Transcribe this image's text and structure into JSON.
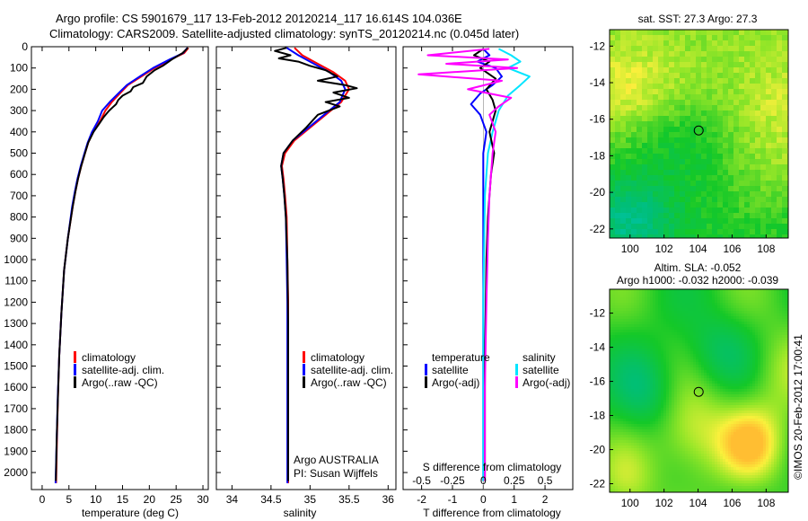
{
  "header": {
    "line1": "Argo profile: CS 5901679_117 13-Feb-2012 20120214_117 16.614S 104.036E",
    "line2": "Climatology: CARS2009. Satellite-adjusted climatology: synTS_20120214.nc (0.045d later)"
  },
  "colors": {
    "climatology": "#ff0000",
    "satellite": "#0000ff",
    "argo": "#000000",
    "sat_salinity": "#00e5ff",
    "argo_salinity": "#ff00ff"
  },
  "watermark": "©IMOS 20-Feb-2012 17:00:41",
  "chart_data": [
    {
      "type": "line",
      "name": "temperature-profile",
      "xlabel": "temperature (deg C)",
      "ylabel": "",
      "xlim": [
        -2,
        31
      ],
      "ylim": [
        0,
        2080
      ],
      "y_inverted": true,
      "xticks": [
        0,
        5,
        10,
        15,
        20,
        25,
        30
      ],
      "yticks": [
        0,
        100,
        200,
        300,
        400,
        500,
        600,
        700,
        800,
        900,
        1000,
        1100,
        1200,
        1300,
        1400,
        1500,
        1600,
        1700,
        1800,
        1900,
        2000
      ],
      "legend": [
        "climatology",
        "satellite-adj. clim.",
        "Argo(..raw -QC)"
      ],
      "series": [
        {
          "name": "climatology",
          "color": "#ff0000",
          "x": [
            27.3,
            26.5,
            24,
            21,
            18.5,
            16,
            14.5,
            13,
            11.8,
            10.8,
            9.5,
            8.6,
            8,
            7.3,
            6.7,
            6.2,
            5.7,
            4.8,
            4.1,
            3.6,
            3.2,
            2.95,
            2.75,
            2.6
          ],
          "y": [
            5,
            30,
            60,
            100,
            140,
            180,
            220,
            260,
            300,
            350,
            400,
            450,
            500,
            560,
            620,
            680,
            750,
            900,
            1050,
            1250,
            1450,
            1650,
            1850,
            2050
          ]
        },
        {
          "name": "satellite-adj. clim.",
          "color": "#0000ff",
          "x": [
            27.1,
            26.3,
            23.8,
            20.7,
            18.2,
            15.8,
            14.2,
            12.6,
            11.2,
            10.4,
            9.3,
            8.5,
            7.9,
            7.2,
            6.6,
            6.1,
            5.6,
            4.8,
            4.1,
            3.6,
            3.2,
            2.9,
            2.7,
            2.5
          ],
          "y": [
            5,
            30,
            60,
            100,
            140,
            180,
            220,
            260,
            300,
            350,
            400,
            450,
            500,
            560,
            620,
            680,
            750,
            900,
            1050,
            1250,
            1450,
            1650,
            1850,
            2050
          ]
        },
        {
          "name": "Argo",
          "color": "#000000",
          "x": [
            27.2,
            26.2,
            24.2,
            22.5,
            21,
            19.5,
            18.8,
            17,
            16.5,
            15,
            14.2,
            13.8,
            12.5,
            11.5,
            10.7,
            9.6,
            8.6,
            8,
            7.3,
            6.7,
            6.2,
            5.7,
            4.8,
            4.1,
            3.6,
            3.2,
            2.95,
            2.7,
            2.55
          ],
          "y": [
            5,
            30,
            60,
            90,
            110,
            140,
            170,
            190,
            210,
            230,
            250,
            270,
            300,
            330,
            360,
            400,
            450,
            500,
            560,
            620,
            680,
            750,
            900,
            1050,
            1250,
            1450,
            1650,
            1850,
            2040
          ]
        }
      ]
    },
    {
      "type": "line",
      "name": "salinity-profile",
      "xlabel": "salinity",
      "xlim": [
        33.8,
        36.1
      ],
      "ylim": [
        0,
        2080
      ],
      "y_inverted": true,
      "xticks": [
        34,
        34.5,
        35,
        35.5,
        36
      ],
      "legend": [
        "climatology",
        "satellite-adj. clim.",
        "Argo(..raw -QC)"
      ],
      "annotation": [
        "Argo AUSTRALIA",
        "PI: Susan Wijffels"
      ],
      "series": [
        {
          "name": "climatology",
          "color": "#ff0000",
          "x": [
            34.8,
            34.9,
            35.1,
            35.3,
            35.45,
            35.5,
            35.4,
            35.2,
            35,
            34.8,
            34.68,
            34.64,
            34.66,
            34.68,
            34.7,
            34.71,
            34.72,
            34.72,
            34.72,
            34.72
          ],
          "y": [
            5,
            40,
            80,
            120,
            160,
            200,
            260,
            320,
            380,
            440,
            500,
            560,
            620,
            700,
            800,
            1000,
            1200,
            1500,
            1800,
            2050
          ]
        },
        {
          "name": "satellite-adj. clim.",
          "color": "#0000ff",
          "x": [
            34.7,
            34.85,
            35.05,
            35.25,
            35.4,
            35.45,
            35.38,
            35.18,
            34.98,
            34.78,
            34.66,
            34.63,
            34.65,
            34.67,
            34.69,
            34.7,
            34.71,
            34.71,
            34.71,
            34.71
          ],
          "y": [
            5,
            40,
            80,
            120,
            160,
            200,
            260,
            320,
            380,
            440,
            500,
            560,
            620,
            700,
            800,
            1000,
            1200,
            1500,
            1800,
            2050
          ]
        },
        {
          "name": "Argo",
          "color": "#000000",
          "x": [
            34.7,
            34.55,
            34.75,
            34.6,
            34.85,
            35,
            35.2,
            35.35,
            35.1,
            35.45,
            35.6,
            35.3,
            35.5,
            35.2,
            35.38,
            35.1,
            34.95,
            34.78,
            34.66,
            34.63,
            34.65,
            34.67,
            34.69,
            34.71,
            34.72,
            34.72,
            34.72
          ],
          "y": [
            5,
            20,
            40,
            55,
            70,
            90,
            110,
            140,
            160,
            180,
            195,
            215,
            240,
            260,
            280,
            320,
            380,
            440,
            500,
            560,
            620,
            700,
            800,
            1000,
            1300,
            1700,
            2040
          ]
        }
      ]
    },
    {
      "type": "line",
      "name": "difference-from-climatology",
      "xlabel": "T difference from climatology",
      "xlabel_top": "S difference from climatology",
      "xlim": [
        -2.6,
        2.9
      ],
      "ylim": [
        0,
        2080
      ],
      "y_inverted": true,
      "xticks": [
        -2,
        -1,
        0,
        1,
        2
      ],
      "xticks_top_labels": [
        "-0.5",
        "-0.25",
        "0",
        "0.25",
        "0.5"
      ],
      "legend": [
        "temperature",
        "satellite",
        "Argo(-adj)",
        "salinity",
        "satellite",
        "Argo(-adj)"
      ],
      "series": [
        {
          "name": "temperature satellite",
          "color": "#0000ff",
          "x": [
            0,
            0.2,
            -0.2,
            0.4,
            0.6,
            0.3,
            -0.1,
            -0.4,
            -0.1,
            0.1,
            0,
            0,
            0,
            0
          ],
          "y": [
            10,
            40,
            70,
            100,
            140,
            180,
            220,
            270,
            320,
            400,
            500,
            700,
            1200,
            2040
          ]
        },
        {
          "name": "salinity satellite",
          "color": "#00e5ff",
          "x": [
            0.5,
            0.9,
            1.2,
            0.8,
            1.5,
            1.2,
            0.8,
            0.5,
            0.3,
            0.15,
            0.05,
            0,
            0
          ],
          "y": [
            10,
            40,
            70,
            100,
            140,
            180,
            230,
            300,
            400,
            500,
            700,
            1200,
            2040
          ]
        },
        {
          "name": "temperature Argo(-adj)",
          "color": "#000000",
          "x": [
            0,
            -0.3,
            0.2,
            -0.1,
            0.4,
            0.1,
            0.3,
            0.4,
            0.2,
            0.35,
            0.25,
            0.15,
            0.1,
            0.05,
            0.05
          ],
          "y": [
            10,
            40,
            70,
            100,
            150,
            200,
            250,
            300,
            400,
            500,
            600,
            800,
            1000,
            1500,
            2040
          ]
        },
        {
          "name": "salinity Argo(-adj)",
          "color": "#ff00ff",
          "x": [
            0.2,
            -1.8,
            0.8,
            -1.2,
            1.1,
            -2.1,
            0.6,
            -0.5,
            0.9,
            0.5,
            0.2,
            0.4,
            0.3,
            0.2,
            0.15,
            0.1,
            0.05,
            0.05
          ],
          "y": [
            10,
            40,
            60,
            80,
            100,
            130,
            160,
            200,
            240,
            280,
            320,
            400,
            500,
            700,
            900,
            1200,
            1600,
            2040
          ]
        }
      ]
    },
    {
      "type": "heatmap",
      "name": "satellite-sst-map",
      "title": "sat. SST: 27.3 Argo: 27.3",
      "xlim": [
        98.8,
        109.3
      ],
      "ylim": [
        -22.5,
        -11.1
      ],
      "xticks": [
        100,
        102,
        104,
        106,
        108
      ],
      "yticks": [
        -12,
        -14,
        -16,
        -18,
        -20,
        -22
      ],
      "marker": {
        "lon": 104.036,
        "lat": -16.614
      }
    },
    {
      "type": "heatmap",
      "name": "altimetry-sla-map",
      "title": "Altim. SLA: -0.052",
      "subtitle": "Argo h1000: -0.032 h2000: -0.039",
      "xlim": [
        98.8,
        109.3
      ],
      "ylim": [
        -22.5,
        -10.6
      ],
      "xticks": [
        100,
        102,
        104,
        106,
        108
      ],
      "yticks": [
        -12,
        -14,
        -16,
        -18,
        -20,
        -22
      ],
      "marker": {
        "lon": 104.036,
        "lat": -16.614
      }
    }
  ]
}
